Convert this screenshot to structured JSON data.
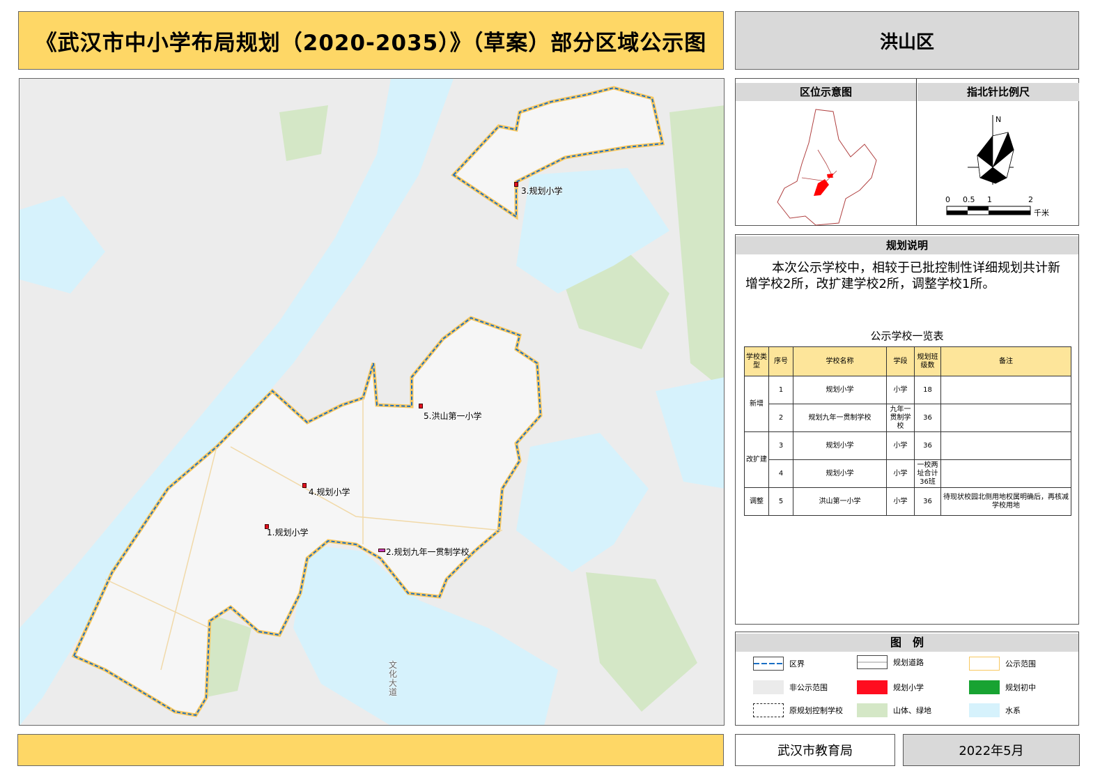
{
  "header": {
    "title": "《武汉市中小学布局规划（2020-2035）》（草案）部分区域公示图",
    "district": "洪山区"
  },
  "map": {
    "road_label": "文化大道",
    "schools": [
      {
        "label": "1.规划小学",
        "color": "#e0101e"
      },
      {
        "label": "2.规划九年一贯制学校",
        "color": "#c040c0"
      },
      {
        "label": "3.规划小学",
        "color": "#e0101e"
      },
      {
        "label": "4.规划小学",
        "color": "#e0101e"
      },
      {
        "label": "5.洪山第一小学",
        "color": "#e0101e"
      }
    ]
  },
  "location_panel": {
    "title": "区位示意图",
    "highlight_color": "#ff0000"
  },
  "north_panel": {
    "title": "指北针比例尺",
    "north": "N",
    "scale_ticks": [
      "0",
      "0.5",
      "1",
      "2"
    ],
    "scale_unit": "千米"
  },
  "description": {
    "title": "规划说明",
    "text": "本次公示学校中，相较于已批控制性详细规划共计新增学校2所，改扩建学校2所，调整学校1所。",
    "table_title": "公示学校一览表",
    "columns": [
      "学校类型",
      "序号",
      "学校名称",
      "学段",
      "规划班级数",
      "备注"
    ],
    "groups": [
      {
        "type": "新增",
        "rows": [
          {
            "no": "1",
            "name": "规划小学",
            "stage": "小学",
            "classes": "18",
            "note": ""
          },
          {
            "no": "2",
            "name": "规划九年一贯制学校",
            "stage": "九年一贯制学校",
            "classes": "36",
            "note": ""
          }
        ]
      },
      {
        "type": "改扩建",
        "rows": [
          {
            "no": "3",
            "name": "规划小学",
            "stage": "小学",
            "classes": "36",
            "note": ""
          },
          {
            "no": "4",
            "name": "规划小学",
            "stage": "小学",
            "classes": "一校两址合计36班",
            "note": ""
          }
        ]
      },
      {
        "type": "调整",
        "rows": [
          {
            "no": "5",
            "name": "洪山第一小学",
            "stage": "小学",
            "classes": "36",
            "note": "待现状校园北侧用地权属明确后，再核减学校用地"
          }
        ]
      }
    ]
  },
  "legend": {
    "title": "图　例",
    "items": [
      {
        "label": "区界",
        "color": "#1a6fc4"
      },
      {
        "label": "规划道路",
        "color": "#ffffff"
      },
      {
        "label": "公示范围",
        "color": "#f8c860"
      },
      {
        "label": "非公示范围",
        "color": "#ebebeb"
      },
      {
        "label": "规划小学",
        "color": "#ff0d1f"
      },
      {
        "label": "规划初中",
        "color": "#18a332"
      },
      {
        "label": "原规划控制学校",
        "color": "#ffffff"
      },
      {
        "label": "山体、绿地",
        "color": "#d4e7c6"
      },
      {
        "label": "水系",
        "color": "#d6f2fc"
      }
    ]
  },
  "footer": {
    "bureau": "武汉市教育局",
    "date": "2022年5月"
  }
}
